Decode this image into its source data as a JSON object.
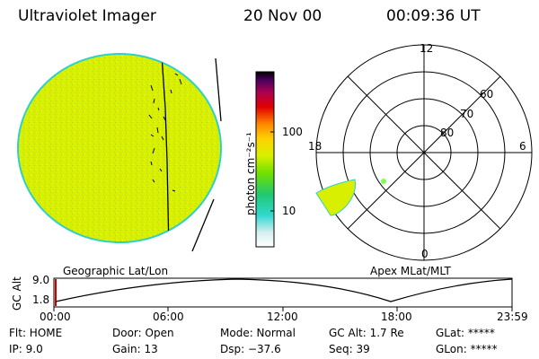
{
  "header": {
    "instrument": "Ultraviolet Imager",
    "date": "20 Nov 00",
    "time": "00:09:36 UT"
  },
  "colorbar": {
    "unit_label": "photon cm⁻²s⁻¹",
    "ticks": [
      "100",
      "10"
    ]
  },
  "polar_plot": {
    "mlt_labels": [
      "12",
      "6",
      "0",
      "18"
    ],
    "mlat_labels": [
      "60",
      "70",
      "80"
    ]
  },
  "panel_labels": {
    "geo": "Geographic Lat/Lon",
    "apex": "Apex MLat/MLT"
  },
  "altitude_plot": {
    "ylabel": "GC Alt",
    "yticks": [
      "9.0",
      "1.8"
    ],
    "xticks": [
      "00:00",
      "06:00",
      "12:00",
      "18:00",
      "23:59"
    ]
  },
  "info": {
    "row1": {
      "flt": "Flt: HOME",
      "door": "Door: Open",
      "mode": "Mode: Normal",
      "gcalt": "GC Alt: 1.7 Re",
      "glat": "GLat: *****"
    },
    "row2": {
      "ip": "IP:  9.0",
      "gain": "Gain: 13",
      "dsp": "Dsp:  −37.6",
      "seq": "Seq: 39",
      "glon": "GLon: *****"
    }
  },
  "colors": {
    "earth_fill": "#d8f000",
    "earth_edge": "#30d0c8",
    "oval_fill": "#d8f000",
    "marker": "#7cff50",
    "orbit_marker": "#cc0000"
  }
}
